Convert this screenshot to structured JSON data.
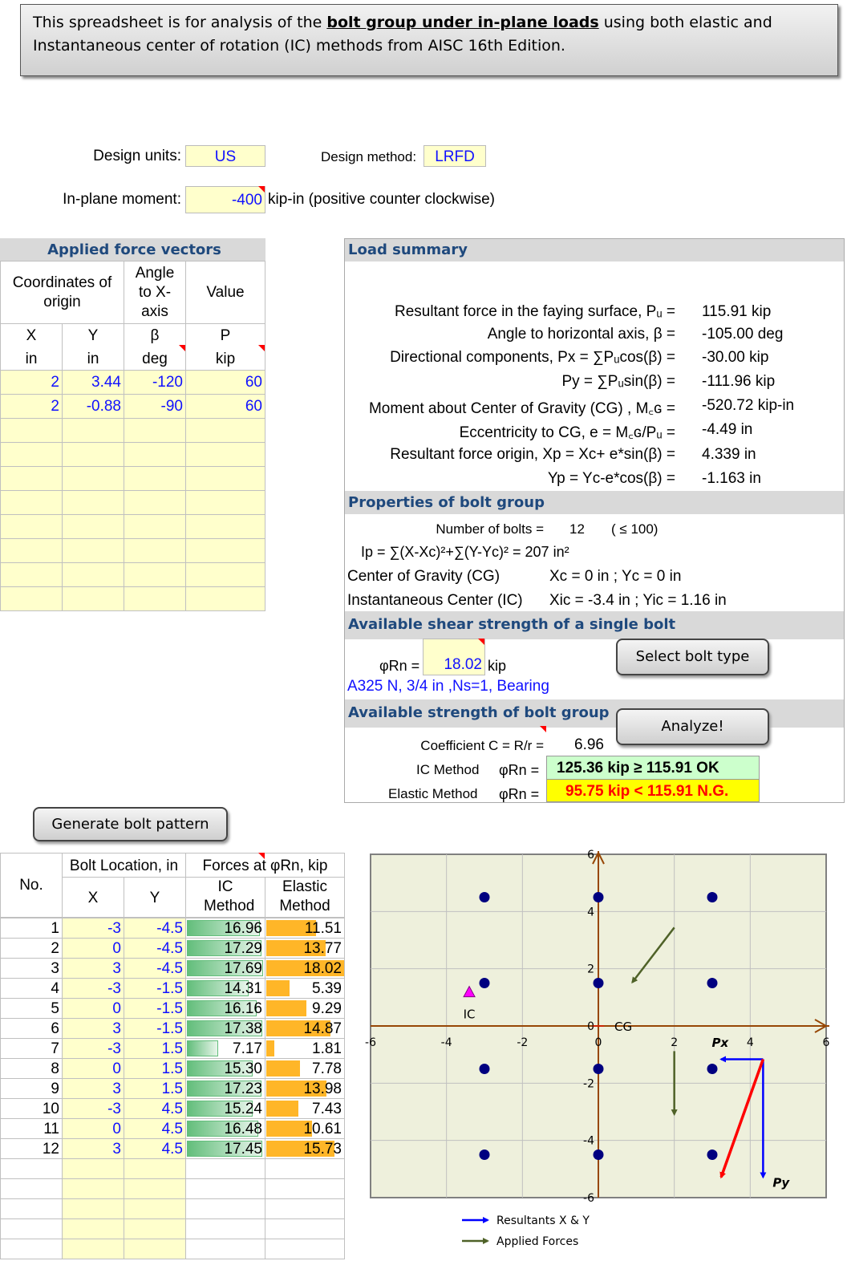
{
  "banner": {
    "pre": "This spreadsheet is for analysis of the ",
    "bold": "bolt group under in-plane loads",
    "post": " using both elastic and Instantaneous center of rotation (IC) methods from AISC 16th Edition."
  },
  "inputs": {
    "units_label": "Design units:",
    "units": "US",
    "method_label": "Design method:",
    "method": "LRFD",
    "moment_label": "In-plane moment:",
    "moment": "-400",
    "moment_unit": "kip-in (positive counter clockwise)"
  },
  "forces": {
    "title": "Applied force vectors",
    "h_coord": "Coordinates of origin",
    "h_angle": "Angle to X-axis",
    "h_value": "Value",
    "sub": [
      [
        "X",
        "in"
      ],
      [
        "Y",
        "in"
      ],
      [
        "β",
        "deg"
      ],
      [
        "P",
        "kip"
      ]
    ],
    "rows": [
      [
        "2",
        "3.44",
        "-120",
        "60"
      ],
      [
        "2",
        "-0.88",
        "-90",
        "60"
      ]
    ]
  },
  "load": {
    "title": "Load summary",
    "rows": [
      [
        "Resultant force in the faying surface, Pᵤ =",
        "115.91 kip"
      ],
      [
        "Angle to horizontal axis, β =",
        "-105.00 deg"
      ],
      [
        "Directional components, Px = ∑Pᵤcos(β) =",
        "-30.00 kip"
      ],
      [
        "Py = ∑Pᵤsin(β) =",
        "-111.96 kip"
      ],
      [
        "Moment about Center of Gravity (CG) , M꜀ɢ =",
        "-520.72 kip-in"
      ],
      [
        "Eccentricity to CG, e = M꜀ɢ/Pᵤ =",
        "-4.49 in"
      ],
      [
        "Resultant force origin, Xp = Xc+ e*sin(β) =",
        "4.339 in"
      ],
      [
        "Yp = Yc-e*cos(β) =",
        "-1.163 in"
      ]
    ]
  },
  "props": {
    "title": "Properties of bolt group",
    "nbolts_label": "Number of bolts =",
    "nbolts": "12",
    "nbolts_limit": "( ≤ 100)",
    "ip": "Ip = ∑(X-Xc)²+∑(Y-Yc)² = 207 in²",
    "cg_label": "Center of Gravity (CG)",
    "cg": "Xc = 0 in ; Yc = 0 in",
    "ic_label": "Instantaneous Center (IC)",
    "ic": "Xic = -3.4 in ; Yic = 1.16 in"
  },
  "single": {
    "title": "Available shear strength of a single bolt",
    "phi_label": "φRn =",
    "phi": "18.02",
    "unit": "kip",
    "bolt_desc": "A325 N, 3/4 in ,Ns=1, Bearing",
    "button": "Select bolt type"
  },
  "group": {
    "title": "Available strength of bolt group",
    "button": "Analyze!",
    "coef_label": "Coefficient C = R/r =",
    "coef": "6.96",
    "ic_label": "IC Method",
    "phi_label": "φRn =",
    "ic_result": "125.36 kip ≥ 115.91 OK",
    "el_label": "Elastic Method",
    "el_result": "95.75 kip < 115.91 N.G.",
    "ok_color": "#ccffcc",
    "ng_color": "#ffff00",
    "ng_text": "#ff0000"
  },
  "gen_button": "Generate bolt pattern",
  "bolts": {
    "h_no": "No.",
    "h_loc": "Bolt Location, in",
    "h_x": "X",
    "h_y": "Y",
    "h_forces": "Forces at φRn, kip",
    "h_ic": "IC Method",
    "h_el": "Elastic Method",
    "max": 18.02,
    "rows": [
      [
        "1",
        "-3",
        "-4.5",
        "16.96",
        "11.51"
      ],
      [
        "2",
        "0",
        "-4.5",
        "17.29",
        "13.77"
      ],
      [
        "3",
        "3",
        "-4.5",
        "17.69",
        "18.02"
      ],
      [
        "4",
        "-3",
        "-1.5",
        "14.31",
        "5.39"
      ],
      [
        "5",
        "0",
        "-1.5",
        "16.16",
        "9.29"
      ],
      [
        "6",
        "3",
        "-1.5",
        "17.38",
        "14.87"
      ],
      [
        "7",
        "-3",
        "1.5",
        "7.17",
        "1.81"
      ],
      [
        "8",
        "0",
        "1.5",
        "15.30",
        "7.78"
      ],
      [
        "9",
        "3",
        "1.5",
        "17.23",
        "13.98"
      ],
      [
        "10",
        "-3",
        "4.5",
        "15.24",
        "7.43"
      ],
      [
        "11",
        "0",
        "4.5",
        "16.48",
        "10.61"
      ],
      [
        "12",
        "3",
        "4.5",
        "17.45",
        "15.73"
      ]
    ]
  },
  "chart_data": {
    "type": "scatter",
    "xlim": [
      -6,
      6
    ],
    "ylim": [
      -6,
      6
    ],
    "xticks": [
      "-6",
      "-4",
      "-2",
      "0",
      "2",
      "4",
      "6"
    ],
    "yticks": [
      "6",
      "4",
      "2",
      "0",
      "-2",
      "-4",
      "-6"
    ],
    "grid": true,
    "bolts_x": [
      -3,
      0,
      3,
      -3,
      0,
      3,
      -3,
      0,
      3,
      -3,
      0,
      3
    ],
    "bolts_y": [
      -4.5,
      -4.5,
      -4.5,
      -1.5,
      -1.5,
      -1.5,
      1.5,
      1.5,
      1.5,
      4.5,
      4.5,
      4.5
    ],
    "ic": {
      "x": -3.4,
      "y": 1.16,
      "label": "IC"
    },
    "cg": {
      "x": 0,
      "y": 0,
      "label": "CG"
    },
    "applied": [
      {
        "x": 2,
        "y": 3.44,
        "angle": -120,
        "P": 60
      },
      {
        "x": 2,
        "y": -0.88,
        "angle": -90,
        "P": 60
      }
    ],
    "resultant": {
      "x": 4.339,
      "y": -1.163,
      "Px": -30,
      "Py": -111.96,
      "Pu": 115.91,
      "px_label": "Px",
      "py_label": "Py"
    },
    "legend": [
      {
        "name": "Resultants X & Y",
        "color": "#0000ff"
      },
      {
        "name": "Applied Forces",
        "color": "#4f6228"
      }
    ],
    "legend_position": "bottom"
  }
}
